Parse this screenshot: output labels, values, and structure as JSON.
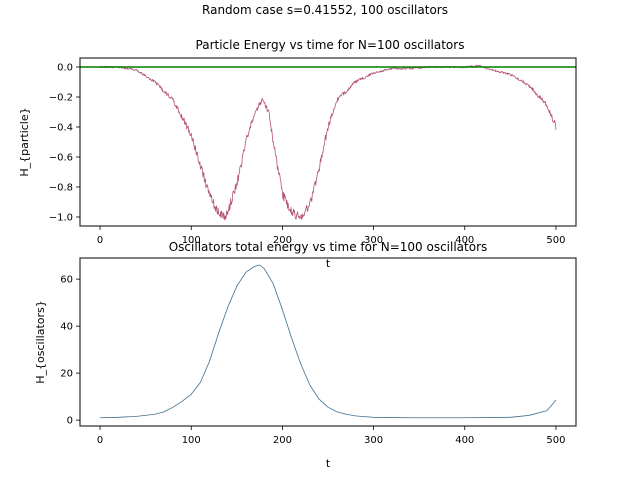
{
  "suptitle": "Random case s=0.41552, 100 oscillators",
  "chart_data": [
    {
      "type": "line",
      "title": "Particle Energy vs time for N=100 oscillators",
      "xlabel": "t",
      "ylabel": "H_{particle}",
      "xlim": [
        -22,
        522
      ],
      "ylim": [
        -1.06,
        0.06
      ],
      "xticks": [
        0,
        100,
        200,
        300,
        400,
        500
      ],
      "yticks": [
        0.0,
        -0.2,
        -0.4,
        -0.6,
        -0.8,
        -1.0
      ],
      "ytick_labels": [
        "0.0",
        "−0.2",
        "−0.4",
        "−0.6",
        "−0.8",
        "−1.0"
      ],
      "grid": false,
      "series": [
        {
          "color": "#b5536e",
          "noisy": true,
          "x": [
            0,
            20,
            40,
            60,
            80,
            100,
            110,
            120,
            130,
            135,
            140,
            150,
            160,
            170,
            178,
            185,
            190,
            200,
            210,
            220,
            230,
            240,
            250,
            260,
            280,
            300,
            320,
            340,
            360,
            380,
            400,
            415,
            430,
            450,
            470,
            490,
            500
          ],
          "y": [
            0.0,
            0.0,
            -0.02,
            -0.1,
            -0.22,
            -0.45,
            -0.65,
            -0.86,
            -0.97,
            -1.0,
            -0.97,
            -0.78,
            -0.5,
            -0.3,
            -0.22,
            -0.3,
            -0.5,
            -0.85,
            -0.97,
            -1.0,
            -0.92,
            -0.68,
            -0.4,
            -0.22,
            -0.1,
            -0.04,
            -0.01,
            -0.01,
            0.0,
            0.0,
            0.0,
            0.01,
            -0.02,
            -0.05,
            -0.12,
            -0.25,
            -0.4
          ]
        },
        {
          "color": "#007f00",
          "noisy": false,
          "x": [
            -22,
            522
          ],
          "y": [
            0.0,
            0.0
          ]
        }
      ]
    },
    {
      "type": "line",
      "title": "Oscillators total energy vs time for N=100 oscillators",
      "xlabel": "t",
      "ylabel": "H_{oscillators}",
      "xlim": [
        -22,
        522
      ],
      "ylim": [
        -2.5,
        69
      ],
      "xticks": [
        0,
        100,
        200,
        300,
        400,
        500
      ],
      "yticks": [
        0,
        20,
        40,
        60
      ],
      "ytick_labels": [
        "0",
        "20",
        "40",
        "60"
      ],
      "grid": false,
      "series": [
        {
          "color": "#3f6f8f",
          "noisy": false,
          "x": [
            0,
            20,
            40,
            60,
            70,
            80,
            90,
            100,
            110,
            120,
            130,
            140,
            150,
            160,
            170,
            175,
            180,
            190,
            200,
            210,
            220,
            230,
            240,
            250,
            260,
            270,
            280,
            290,
            300,
            320,
            340,
            360,
            400,
            450,
            470,
            490,
            500
          ],
          "y": [
            1,
            1.2,
            1.6,
            2.5,
            3.5,
            5.5,
            8,
            11,
            16,
            25,
            37,
            48,
            57,
            63,
            65.5,
            66,
            64.5,
            58,
            47,
            35,
            24,
            15,
            9,
            5.5,
            3.5,
            2.5,
            1.8,
            1.5,
            1.2,
            1.1,
            1.0,
            1.0,
            1.0,
            1.2,
            2.0,
            4.0,
            8.5
          ]
        }
      ]
    }
  ]
}
